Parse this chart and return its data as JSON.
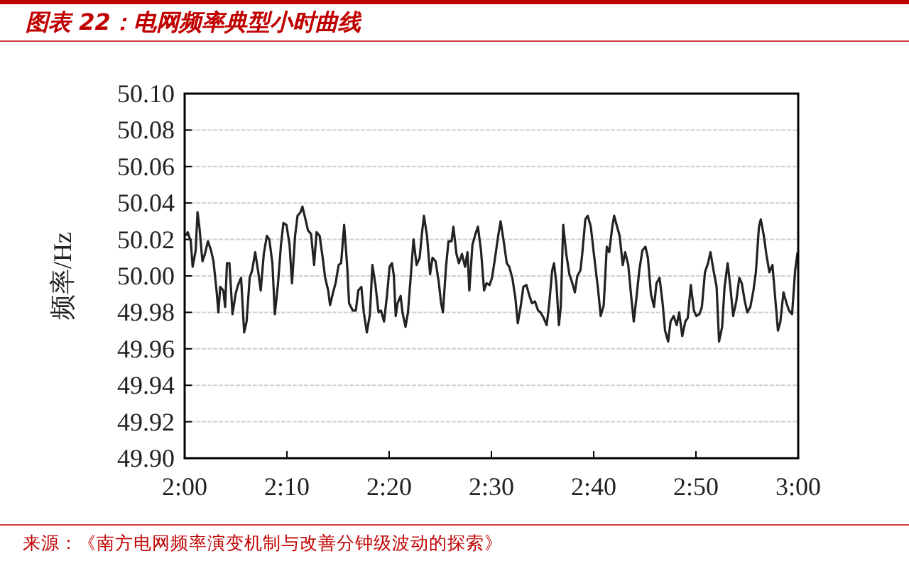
{
  "chart_data": {
    "type": "line",
    "title": "图表 22：电网频率典型小时曲线",
    "ylabel": "频率/Hz",
    "annotations": [
      "来源：《南方电网频率演变机制与改善分钟级波动的探索》"
    ],
    "grid": "y",
    "line_style": "solid",
    "xlim": [
      2,
      3
    ],
    "xticks": [
      {
        "value": 2,
        "label": "2:00"
      },
      {
        "value": 2.1667,
        "label": "2:10"
      },
      {
        "value": 2.3333,
        "label": "2:20"
      },
      {
        "value": 2.5,
        "label": "2:30"
      },
      {
        "value": 2.6667,
        "label": "2:40"
      },
      {
        "value": 2.8333,
        "label": "2:50"
      },
      {
        "value": 3,
        "label": "3:00"
      }
    ],
    "ylim": [
      49.9,
      50.1
    ],
    "yticks": [
      {
        "value": 49.9,
        "label": "49.90"
      },
      {
        "value": 49.92,
        "label": "49.92"
      },
      {
        "value": 49.94,
        "label": "49.94"
      },
      {
        "value": 49.96,
        "label": "49.96"
      },
      {
        "value": 49.98,
        "label": "49.98"
      },
      {
        "value": 50.0,
        "label": "50.00"
      },
      {
        "value": 50.02,
        "label": "50.02"
      },
      {
        "value": 50.04,
        "label": "50.04"
      },
      {
        "value": 50.06,
        "label": "50.06"
      },
      {
        "value": 50.08,
        "label": "50.08"
      },
      {
        "value": 50.1,
        "label": "50.10"
      }
    ],
    "x": [
      2.002,
      2.005,
      2.01,
      2.013,
      2.018,
      2.021,
      2.024,
      2.029,
      2.033,
      2.038,
      2.043,
      2.047,
      2.052,
      2.055,
      2.058,
      2.063,
      2.066,
      2.069,
      2.073,
      2.078,
      2.083,
      2.087,
      2.092,
      2.097,
      2.101,
      2.106,
      2.11,
      2.115,
      2.12,
      2.124,
      2.129,
      2.134,
      2.138,
      2.143,
      2.147,
      2.152,
      2.157,
      2.161,
      2.166,
      2.171,
      2.175,
      2.18,
      2.184,
      2.189,
      2.192,
      2.197,
      2.201,
      2.206,
      2.211,
      2.215,
      2.22,
      2.225,
      2.229,
      2.234,
      2.237,
      2.242,
      2.246,
      2.251,
      2.255,
      2.26,
      2.265,
      2.268,
      2.274,
      2.279,
      2.283,
      2.288,
      2.292,
      2.297,
      2.302,
      2.306,
      2.311,
      2.316,
      2.32,
      2.325,
      2.33,
      2.334,
      2.338,
      2.341,
      2.344,
      2.347,
      2.352,
      2.355,
      2.36,
      2.364,
      2.369,
      2.373,
      2.378,
      2.383,
      2.387,
      2.39,
      2.395,
      2.4,
      2.404,
      2.409,
      2.414,
      2.418,
      2.421,
      2.426,
      2.43,
      2.435,
      2.438,
      2.443,
      2.447,
      2.452,
      2.457,
      2.461,
      2.464,
      2.469,
      2.474,
      2.478,
      2.483,
      2.488,
      2.492,
      2.497,
      2.501,
      2.506,
      2.511,
      2.515,
      2.52,
      2.525,
      2.529,
      2.534,
      2.539,
      2.543,
      2.548,
      2.552,
      2.557,
      2.562,
      2.566,
      2.571,
      2.576,
      2.58,
      2.585,
      2.59,
      2.594,
      2.599,
      2.602,
      2.606,
      2.61,
      2.613,
      2.617,
      2.622,
      2.627,
      2.631,
      2.636,
      2.64,
      2.645,
      2.648,
      2.653,
      2.657,
      2.662,
      2.667,
      2.674,
      2.678,
      2.683,
      2.688,
      2.692,
      2.697,
      2.7,
      2.704,
      2.709,
      2.714,
      2.718,
      2.723,
      2.728,
      2.732,
      2.737,
      2.741,
      2.746,
      2.751,
      2.755,
      2.76,
      2.765,
      2.769,
      2.774,
      2.779,
      2.783,
      2.788,
      2.792,
      2.797,
      2.802,
      2.806,
      2.811,
      2.816,
      2.82,
      2.825,
      2.83,
      2.834,
      2.839,
      2.843,
      2.848,
      2.853,
      2.857,
      2.862,
      2.867,
      2.871,
      2.876,
      2.88,
      2.885,
      2.89,
      2.894,
      2.899,
      2.904,
      2.908,
      2.913,
      2.917,
      2.922,
      2.927,
      2.931,
      2.936,
      2.939,
      2.944,
      2.948,
      2.953,
      2.958,
      2.962,
      2.967,
      2.971,
      2.976,
      2.981,
      2.985,
      2.99,
      2.995,
      2.999
    ],
    "series": [
      {
        "color": "#222222",
        "values": [
          50.022,
          50.024,
          50.019,
          50.005,
          50.014,
          50.035,
          50.027,
          50.008,
          50.012,
          50.019,
          50.014,
          50.008,
          49.992,
          49.98,
          49.994,
          49.992,
          49.983,
          50.007,
          50.007,
          49.979,
          49.99,
          49.995,
          49.999,
          49.969,
          49.975,
          49.999,
          50.003,
          50.013,
          50.002,
          49.992,
          50.012,
          50.022,
          50.02,
          50.007,
          49.979,
          49.995,
          50.017,
          50.029,
          50.028,
          50.017,
          49.996,
          50.022,
          50.033,
          50.035,
          50.038,
          50.031,
          50.025,
          50.023,
          50.006,
          50.024,
          50.022,
          50.01,
          49.999,
          49.992,
          49.984,
          49.991,
          49.996,
          50.006,
          50.007,
          50.028,
          50.005,
          49.985,
          49.981,
          49.981,
          49.992,
          49.994,
          49.98,
          49.969,
          49.979,
          50.006,
          49.995,
          49.98,
          49.981,
          49.975,
          49.99,
          50.005,
          50.007,
          50.0,
          49.978,
          49.985,
          49.989,
          49.98,
          49.972,
          49.98,
          50.002,
          50.02,
          50.006,
          50.01,
          50.024,
          50.033,
          50.022,
          50.001,
          50.01,
          50.008,
          49.997,
          49.985,
          49.98,
          50.005,
          50.019,
          50.019,
          50.027,
          50.012,
          50.007,
          50.012,
          50.005,
          50.013,
          49.992,
          50.017,
          50.023,
          50.027,
          50.014,
          49.992,
          49.996,
          49.995,
          49.999,
          50.01,
          50.022,
          50.03,
          50.019,
          50.007,
          50.005,
          49.999,
          49.988,
          49.974,
          49.984,
          49.994,
          49.995,
          49.989,
          49.985,
          49.986,
          49.981,
          49.98,
          49.977,
          49.973,
          49.984,
          50.003,
          50.007,
          49.995,
          49.973,
          49.983,
          50.028,
          50.012,
          50.001,
          49.997,
          49.991,
          50.0,
          50.003,
          50.012,
          50.031,
          50.033,
          50.027,
          50.012,
          49.992,
          49.978,
          49.984,
          50.016,
          50.013,
          50.027,
          50.033,
          50.028,
          50.022,
          50.006,
          50.013,
          50.006,
          49.988,
          49.975,
          49.99,
          50.003,
          50.014,
          50.016,
          50.01,
          49.99,
          49.983,
          49.996,
          49.999,
          49.985,
          49.97,
          49.964,
          49.975,
          49.978,
          49.973,
          49.98,
          49.967,
          49.975,
          49.977,
          49.995,
          49.981,
          49.978,
          49.979,
          49.983,
          50.002,
          50.007,
          50.013,
          50.003,
          49.994,
          49.964,
          49.972,
          49.994,
          50.007,
          49.992,
          49.978,
          49.986,
          49.999,
          49.996,
          49.986,
          49.98,
          49.983,
          49.992,
          50.002,
          50.027,
          50.031,
          50.022,
          50.012,
          50.002,
          50.006,
          49.99,
          49.97,
          49.975,
          49.991,
          49.985,
          49.981,
          49.979,
          50.003,
          50.013
        ]
      }
    ]
  }
}
